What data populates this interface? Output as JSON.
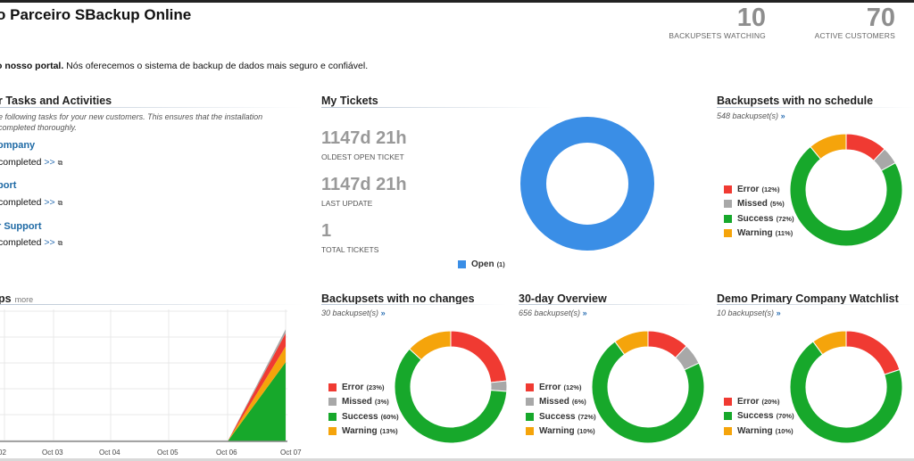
{
  "header": {
    "title": "o Parceiro SBackup Online",
    "stats": [
      {
        "value": "10",
        "label": "BACKUPSETS WATCHING"
      },
      {
        "value": "70",
        "label": "ACTIVE CUSTOMERS"
      }
    ]
  },
  "welcome": {
    "bold": "o nosso portal.",
    "text": " Nós oferecemos o sistema de backup de dados mais seguro e confiável."
  },
  "tasks": {
    "title": "r Tasks and Activities",
    "description": "e following tasks for your new customers. This ensures that the installation completed thoroughly.",
    "items": [
      {
        "title": "ompany",
        "status": "completed",
        "more": ">>"
      },
      {
        "title": "port",
        "status": "completed",
        "more": ">>"
      },
      {
        "title": "r Support",
        "status": "completed",
        "more": ">>"
      }
    ]
  },
  "tickets": {
    "title": "My Tickets",
    "oldest_value": "1147d 21h",
    "oldest_label": "OLDEST OPEN TICKET",
    "update_value": "1147d 21h",
    "update_label": "LAST UPDATE",
    "total_value": "1",
    "total_label": "TOTAL TICKETS",
    "legend": [
      {
        "name": "Open",
        "pct": "(1)",
        "color": "#3a8ee6",
        "value": 100
      }
    ]
  },
  "panels": {
    "no_schedule": {
      "title": "Backupsets with no schedule",
      "sub": "548 backupset(s)",
      "arrow": "»",
      "legend": [
        {
          "name": "Error",
          "pct": "(12%)",
          "color": "#f03a32",
          "value": 12
        },
        {
          "name": "Missed",
          "pct": "(5%)",
          "color": "#a8a8a8",
          "value": 5
        },
        {
          "name": "Success",
          "pct": "(72%)",
          "color": "#17a82b",
          "value": 72
        },
        {
          "name": "Warning",
          "pct": "(11%)",
          "color": "#f5a40b",
          "value": 11
        }
      ]
    },
    "no_changes": {
      "title": "Backupsets with no changes",
      "sub": "30 backupset(s)",
      "arrow": "»",
      "legend": [
        {
          "name": "Error",
          "pct": "(23%)",
          "color": "#f03a32",
          "value": 23
        },
        {
          "name": "Missed",
          "pct": "(3%)",
          "color": "#a8a8a8",
          "value": 3
        },
        {
          "name": "Success",
          "pct": "(60%)",
          "color": "#17a82b",
          "value": 60
        },
        {
          "name": "Warning",
          "pct": "(13%)",
          "color": "#f5a40b",
          "value": 13
        }
      ]
    },
    "overview": {
      "title": "30-day Overview",
      "sub": "656 backupset(s)",
      "arrow": "»",
      "legend": [
        {
          "name": "Error",
          "pct": "(12%)",
          "color": "#f03a32",
          "value": 12
        },
        {
          "name": "Missed",
          "pct": "(6%)",
          "color": "#a8a8a8",
          "value": 6
        },
        {
          "name": "Success",
          "pct": "(72%)",
          "color": "#17a82b",
          "value": 72
        },
        {
          "name": "Warning",
          "pct": "(10%)",
          "color": "#f5a40b",
          "value": 10
        }
      ]
    },
    "watchlist": {
      "title": "Demo Primary Company Watchlist",
      "sub": "10 backupset(s)",
      "arrow": "»",
      "legend": [
        {
          "name": "Error",
          "pct": "(20%)",
          "color": "#f03a32",
          "value": 20
        },
        {
          "name": "Success",
          "pct": "(70%)",
          "color": "#17a82b",
          "value": 70
        },
        {
          "name": "Warning",
          "pct": "(10%)",
          "color": "#f5a40b",
          "value": 10
        }
      ]
    }
  },
  "backups_chart": {
    "title": "ps",
    "more": "more"
  },
  "chart_data": {
    "type": "area",
    "categories": [
      "02",
      "Oct 03",
      "Oct 04",
      "Oct 05",
      "Oct 06",
      "Oct 07"
    ],
    "series": [
      {
        "name": "Success",
        "color": "#17a82b",
        "values": [
          0,
          0,
          0,
          0,
          0,
          60
        ]
      },
      {
        "name": "Warning",
        "color": "#f5a40b",
        "values": [
          0,
          0,
          0,
          0,
          0,
          12
        ]
      },
      {
        "name": "Error",
        "color": "#f03a32",
        "values": [
          0,
          0,
          0,
          0,
          0,
          10
        ]
      },
      {
        "name": "Missed",
        "color": "#a8a8a8",
        "values": [
          0,
          0,
          0,
          0,
          0,
          3
        ]
      }
    ],
    "ylim": [
      0,
      100
    ]
  }
}
